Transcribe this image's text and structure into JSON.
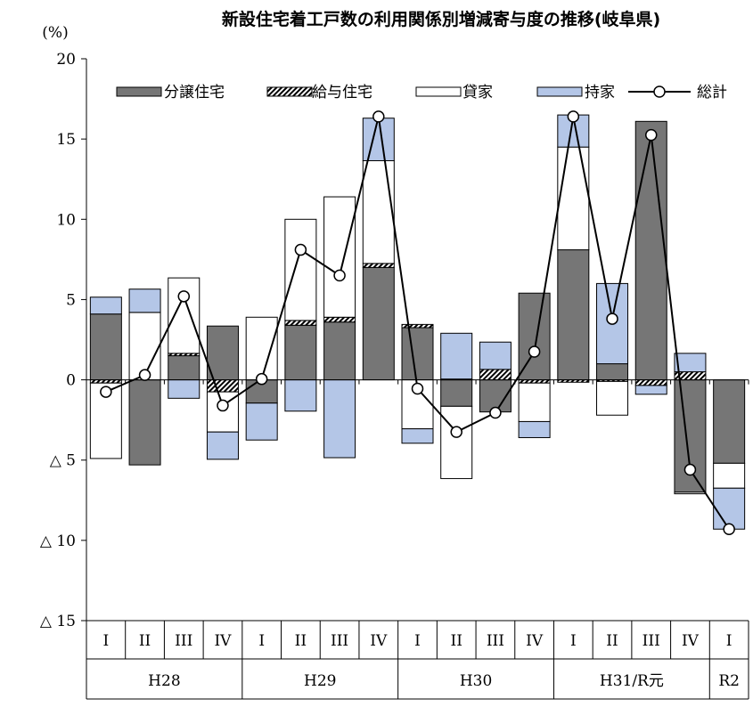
{
  "chart_data": {
    "type": "bar",
    "title": "新設住宅着工戸数の利用関係別増減寄与度の推移(岐阜県)",
    "unit": "(%)",
    "ylim": [
      -15,
      20
    ],
    "yticks": [
      {
        "value": 20,
        "label": "20"
      },
      {
        "value": 15,
        "label": "15"
      },
      {
        "value": 10,
        "label": "10"
      },
      {
        "value": 5,
        "label": "5"
      },
      {
        "value": 0,
        "label": "0"
      },
      {
        "value": -5,
        "label": "△ 5"
      },
      {
        "value": -10,
        "label": "△ 10"
      },
      {
        "value": -15,
        "label": "△ 15"
      }
    ],
    "categories": [
      "I",
      "II",
      "III",
      "IV",
      "I",
      "II",
      "III",
      "IV",
      "I",
      "II",
      "III",
      "IV",
      "I",
      "II",
      "III",
      "IV",
      "I"
    ],
    "years": [
      {
        "label": "H28",
        "start": 0,
        "count": 4
      },
      {
        "label": "H29",
        "start": 4,
        "count": 4
      },
      {
        "label": "H30",
        "start": 8,
        "count": 4
      },
      {
        "label": "H31/R元",
        "start": 12,
        "count": 4
      },
      {
        "label": "R2",
        "start": 16,
        "count": 1
      }
    ],
    "legend_position": "top",
    "series": [
      {
        "name": "分譲住宅",
        "kind": "bar",
        "color": "#767676",
        "values": [
          4.1,
          -5.3,
          1.5,
          3.35,
          -1.45,
          3.4,
          3.6,
          7.0,
          3.25,
          -1.65,
          -2.0,
          5.4,
          8.1,
          1.0,
          16.1,
          -7.0,
          -5.2
        ]
      },
      {
        "name": "給与住宅",
        "kind": "bar",
        "color": "#ffffff",
        "pattern": "hatch",
        "values": [
          -0.2,
          0.0,
          0.15,
          -0.75,
          0.0,
          0.3,
          0.3,
          0.25,
          0.2,
          0.05,
          0.65,
          -0.2,
          -0.15,
          -0.1,
          -0.35,
          0.5,
          0.0
        ]
      },
      {
        "name": "貸家",
        "kind": "bar",
        "color": "#ffffff",
        "values": [
          -4.7,
          4.2,
          4.7,
          -2.5,
          3.9,
          6.3,
          7.5,
          6.4,
          -3.05,
          -4.5,
          0.0,
          -2.4,
          6.4,
          -2.1,
          0.0,
          -0.1,
          -1.55
        ]
      },
      {
        "name": "持家",
        "kind": "bar",
        "color": "#b4c6e7",
        "values": [
          1.05,
          1.45,
          -1.15,
          -1.7,
          -2.3,
          -1.95,
          -4.85,
          2.65,
          -0.9,
          2.85,
          1.7,
          -1.0,
          2.0,
          5.0,
          -0.55,
          1.15,
          -2.55
        ]
      },
      {
        "name": "総計",
        "kind": "line",
        "color": "#000000",
        "values": [
          -0.75,
          0.3,
          5.2,
          -1.6,
          0.05,
          8.1,
          6.5,
          16.4,
          -0.55,
          -3.25,
          -2.05,
          1.75,
          16.4,
          3.8,
          15.25,
          -5.6,
          -9.3
        ]
      }
    ]
  }
}
